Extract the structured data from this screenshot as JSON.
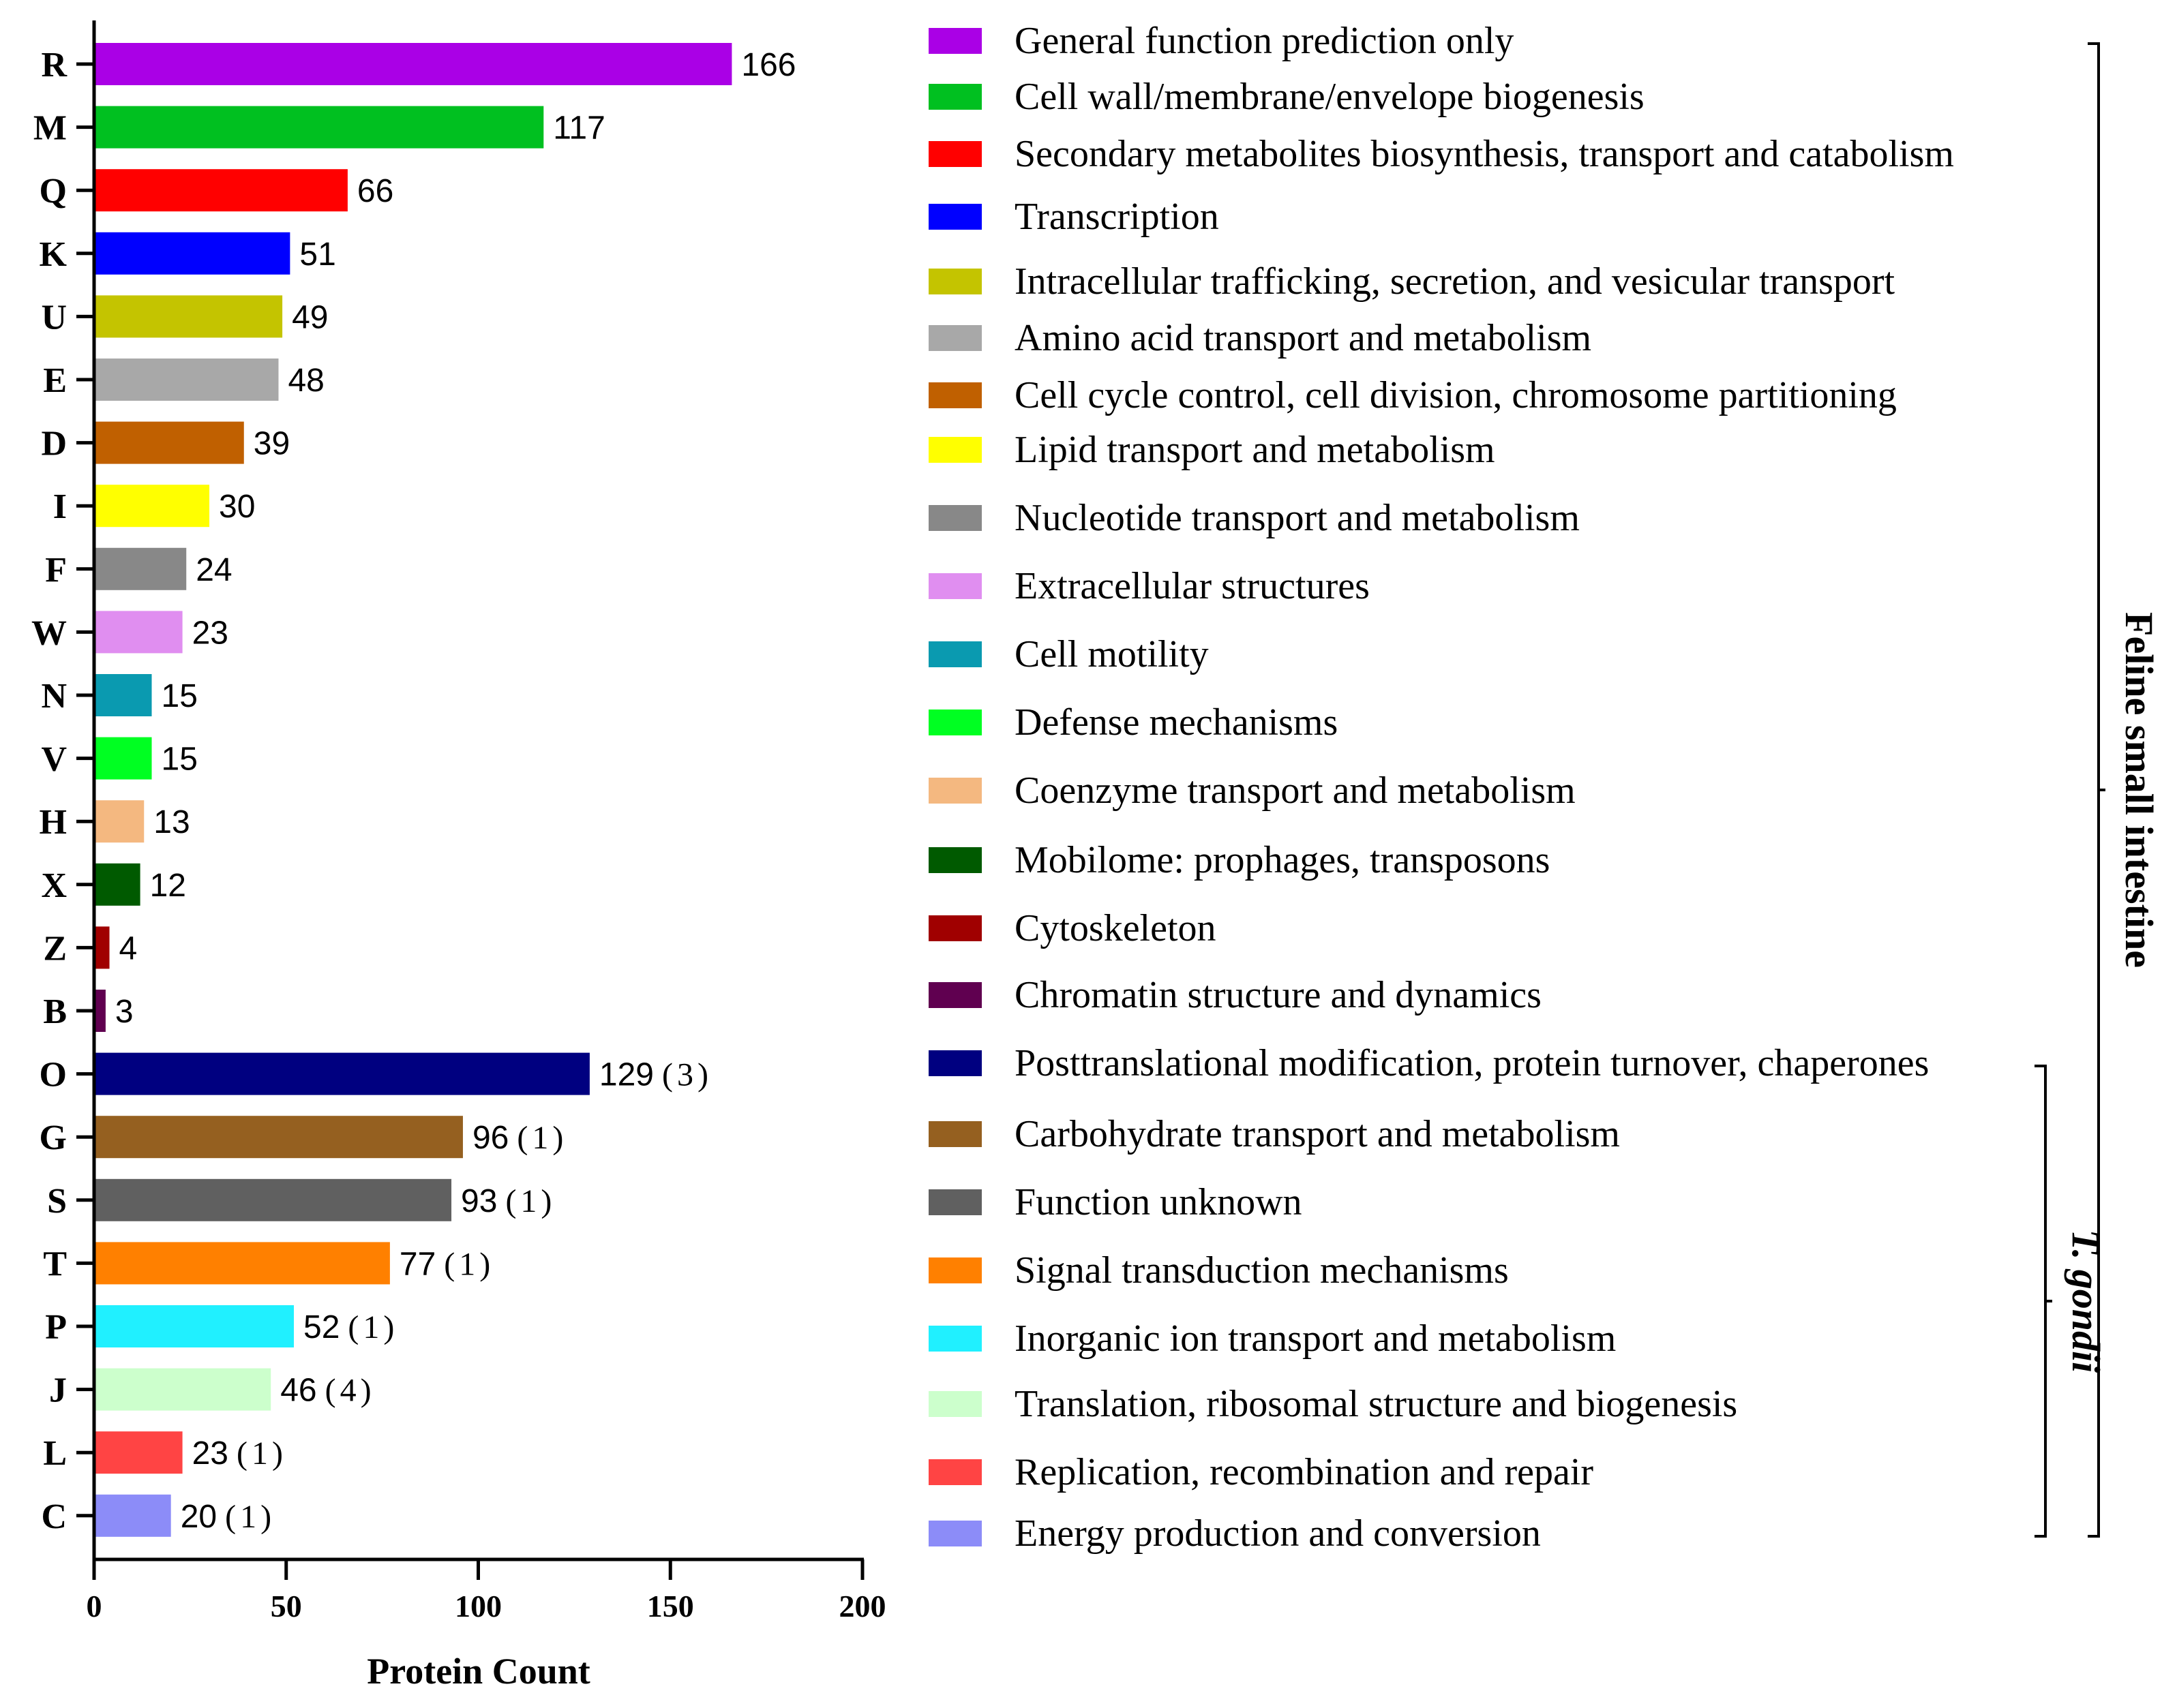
{
  "chart_data": {
    "type": "bar",
    "orientation": "horizontal",
    "xlabel": "Protein Count",
    "xlim": [
      0,
      200
    ],
    "xticks": [
      "0",
      "50",
      "100",
      "150",
      "200"
    ],
    "categories": [
      {
        "code": "R",
        "value": 166,
        "label": "166",
        "extra": "",
        "color": "#aa00e6",
        "name": "General function prediction only"
      },
      {
        "code": "M",
        "value": 117,
        "label": "117",
        "extra": "",
        "color": "#00c020",
        "name": "Cell wall/membrane/envelope biogenesis"
      },
      {
        "code": "Q",
        "value": 66,
        "label": "66",
        "extra": "",
        "color": "#ff0000",
        "name": "Secondary metabolites biosynthesis, transport and catabolism"
      },
      {
        "code": "K",
        "value": 51,
        "label": "51",
        "extra": "",
        "color": "#0000ff",
        "name": "Transcription"
      },
      {
        "code": "U",
        "value": 49,
        "label": "49",
        "extra": "",
        "color": "#c4c400",
        "name": "Intracellular trafficking, secretion, and vesicular transport"
      },
      {
        "code": "E",
        "value": 48,
        "label": "48",
        "extra": "",
        "color": "#a8a8a8",
        "name": "Amino acid transport and metabolism"
      },
      {
        "code": "D",
        "value": 39,
        "label": "39",
        "extra": "",
        "color": "#c06000",
        "name": "Cell cycle control, cell division, chromosome partitioning"
      },
      {
        "code": "I",
        "value": 30,
        "label": "30",
        "extra": "",
        "color": "#ffff00",
        "name": "Lipid transport and metabolism"
      },
      {
        "code": "F",
        "value": 24,
        "label": "24",
        "extra": "",
        "color": "#888888",
        "name": "Nucleotide transport and metabolism"
      },
      {
        "code": "W",
        "value": 23,
        "label": "23",
        "extra": "",
        "color": "#e08ef0",
        "name": "Extracellular structures"
      },
      {
        "code": "N",
        "value": 15,
        "label": "15",
        "extra": "",
        "color": "#0a9ab0",
        "name": "Cell motility"
      },
      {
        "code": "V",
        "value": 15,
        "label": "15",
        "extra": "",
        "color": "#00ff22",
        "name": "Defense mechanisms"
      },
      {
        "code": "H",
        "value": 13,
        "label": "13",
        "extra": "",
        "color": "#f4b880",
        "name": "Coenzyme transport and metabolism"
      },
      {
        "code": "X",
        "value": 12,
        "label": "12",
        "extra": "",
        "color": "#005a00",
        "name": "Mobilome: prophages, transposons"
      },
      {
        "code": "Z",
        "value": 4,
        "label": "4",
        "extra": "",
        "color": "#a00000",
        "name": "Cytoskeleton"
      },
      {
        "code": "B",
        "value": 3,
        "label": "3",
        "extra": "",
        "color": "#600050",
        "name": "Chromatin structure and dynamics"
      },
      {
        "code": "O",
        "value": 129,
        "label": "129",
        "extra": "(3)",
        "color": "#000080",
        "name": "Posttranslational modification, protein turnover, chaperones"
      },
      {
        "code": "G",
        "value": 96,
        "label": "96",
        "extra": "(1)",
        "color": "#956020",
        "name": "Carbohydrate transport and metabolism"
      },
      {
        "code": "S",
        "value": 93,
        "label": "93",
        "extra": "(1)",
        "color": "#606060",
        "name": "Function unknown"
      },
      {
        "code": "T",
        "value": 77,
        "label": "77",
        "extra": "(1)",
        "color": "#ff8000",
        "name": "Signal transduction mechanisms"
      },
      {
        "code": "P",
        "value": 52,
        "label": "52",
        "extra": "(1)",
        "color": "#20f0ff",
        "name": "Inorganic ion transport and metabolism"
      },
      {
        "code": "J",
        "value": 46,
        "label": "46",
        "extra": "(4)",
        "color": "#ccffcc",
        "name": "Translation, ribosomal structure and biogenesis"
      },
      {
        "code": "L",
        "value": 23,
        "label": "23",
        "extra": "(1)",
        "color": "#ff4444",
        "name": "Replication, recombination and repair"
      },
      {
        "code": "C",
        "value": 20,
        "label": "20",
        "extra": "(1)",
        "color": "#8c8cf8",
        "name": "Energy production and conversion"
      }
    ],
    "groups": [
      {
        "name": "Feline small intestine",
        "from": "R",
        "to": "C",
        "italic": false
      },
      {
        "name": "T. gondii",
        "from": "O",
        "to": "C",
        "italic": true
      }
    ],
    "grid": false
  }
}
